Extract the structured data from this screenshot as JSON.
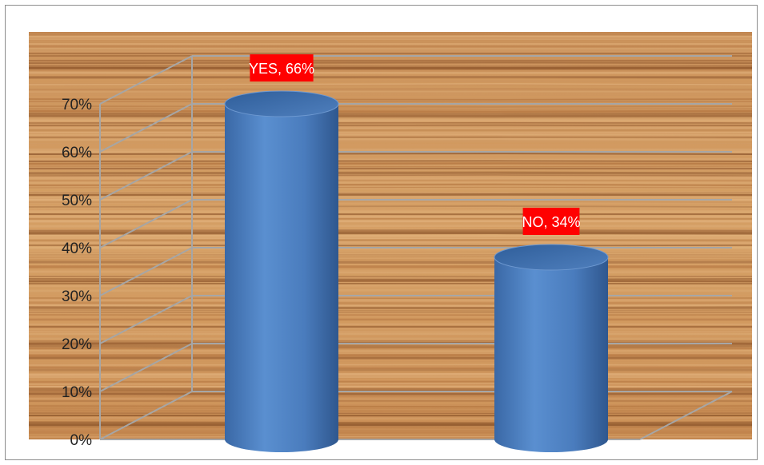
{
  "chart_data": {
    "type": "bar",
    "style": "3d-cylinder",
    "categories": [
      "YES",
      "NO"
    ],
    "values": [
      66,
      34
    ],
    "value_unit": "%",
    "data_labels": [
      "YES, 66%",
      "NO, 34%"
    ],
    "y_ticks": [
      "0%",
      "10%",
      "20%",
      "30%",
      "40%",
      "50%",
      "60%",
      "70%"
    ],
    "ylim": [
      0,
      70
    ],
    "grid": true,
    "legend": "none",
    "title": "",
    "xlabel": "",
    "ylabel": ""
  },
  "colors": {
    "bar_fill": "#4F81BD",
    "data_label_background": "#FF0000",
    "data_label_text": "#FFFFFF",
    "gridline": "#A6A6A6",
    "background_texture": "wood-grain"
  }
}
